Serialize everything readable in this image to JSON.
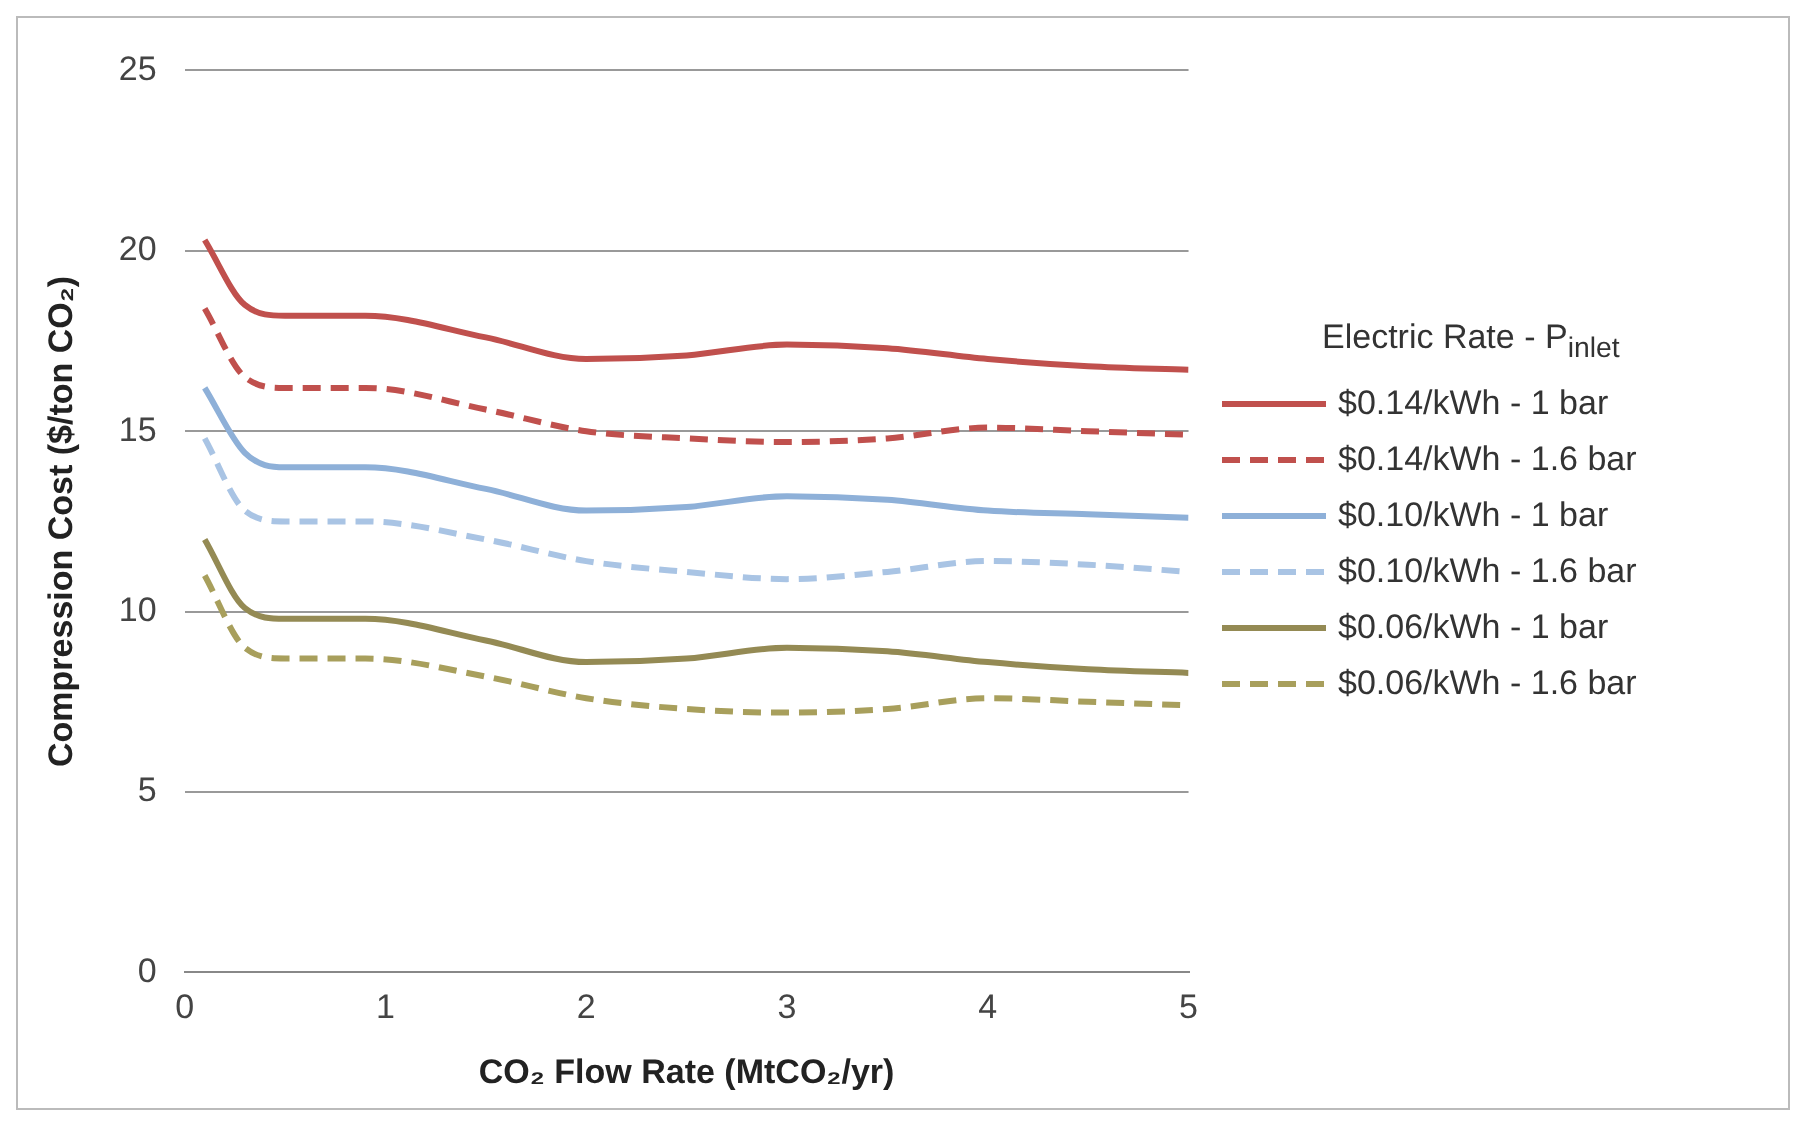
{
  "chart_data": {
    "type": "line",
    "xlabel": "CO₂ Flow Rate (MtCO₂/yr)",
    "ylabel": "Compression Cost ($/ton CO₂)",
    "legend_title": "Electric Rate - P$_{inlet}$",
    "legend": "right",
    "grid": "y",
    "marker": "none",
    "x": [
      0.1,
      0.3,
      0.5,
      0.9,
      1.5,
      2,
      2.5,
      3,
      3.5,
      4,
      4.5,
      5
    ],
    "xlim": [
      0,
      5
    ],
    "xticks": [
      0,
      1,
      2,
      3,
      4,
      5
    ],
    "ylim": [
      0,
      25
    ],
    "yticks": [
      0,
      5,
      10,
      15,
      20,
      25
    ],
    "series": [
      {
        "name": "$0.14/kWh - 1 bar",
        "color": "#c0504d",
        "line_style": "solid",
        "values": [
          20.3,
          18.5,
          18.2,
          18.2,
          17.6,
          17.0,
          17.1,
          17.4,
          17.3,
          17.0,
          16.8,
          16.7
        ]
      },
      {
        "name": "$0.14/kWh - 1.6 bar",
        "color": "#c0504d",
        "line_style": "dashed",
        "values": [
          18.4,
          16.5,
          16.2,
          16.2,
          15.6,
          15.0,
          14.8,
          14.7,
          14.8,
          15.1,
          15.0,
          14.9
        ]
      },
      {
        "name": "$0.10/kWh - 1 bar",
        "color": "#8eb0d8",
        "line_style": "solid",
        "values": [
          16.2,
          14.4,
          14.0,
          14.0,
          13.4,
          12.8,
          12.9,
          13.2,
          13.1,
          12.8,
          12.7,
          12.6
        ]
      },
      {
        "name": "$0.10/kWh - 1.6 bar",
        "color": "#a9c4e4",
        "line_style": "dashed",
        "values": [
          14.8,
          12.8,
          12.5,
          12.5,
          12.0,
          11.4,
          11.1,
          10.9,
          11.1,
          11.4,
          11.3,
          11.1
        ]
      },
      {
        "name": "$0.06/kWh - 1 bar",
        "color": "#948a54",
        "line_style": "solid",
        "values": [
          12.0,
          10.1,
          9.8,
          9.8,
          9.2,
          8.6,
          8.7,
          9.0,
          8.9,
          8.6,
          8.4,
          8.3
        ]
      },
      {
        "name": "$0.06/kWh - 1.6 bar",
        "color": "#a89f5c",
        "line_style": "dashed",
        "values": [
          11.0,
          9.0,
          8.7,
          8.7,
          8.2,
          7.6,
          7.3,
          7.2,
          7.3,
          7.6,
          7.5,
          7.4
        ]
      }
    ]
  }
}
